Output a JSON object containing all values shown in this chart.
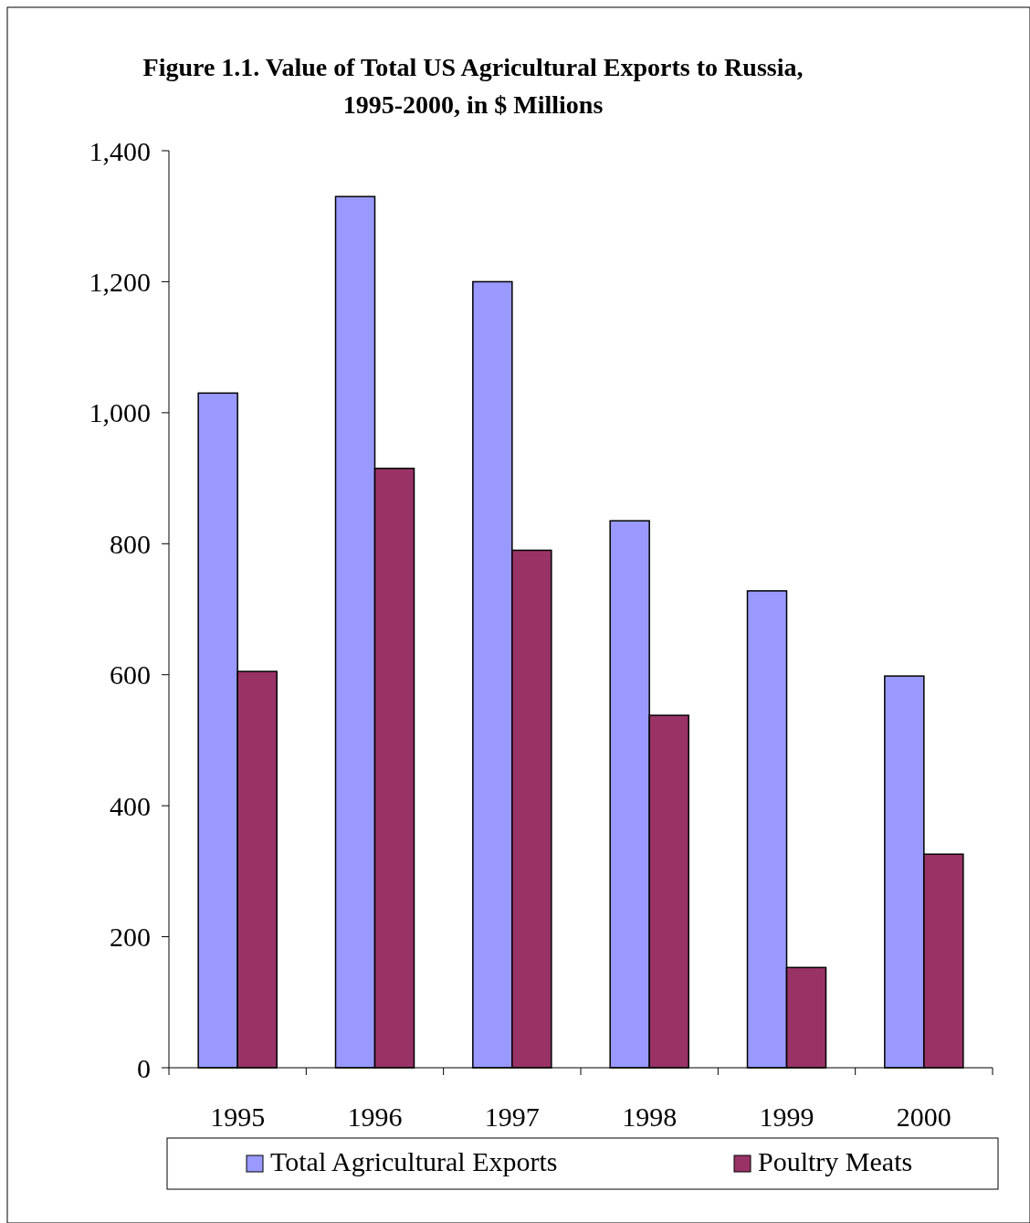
{
  "chart_data": {
    "type": "bar",
    "title": "Figure 1.1. Value of Total US Agricultural Exports to Russia, 1995-2000, in $ Millions",
    "categories": [
      "1995",
      "1996",
      "1997",
      "1998",
      "1999",
      "2000"
    ],
    "series": [
      {
        "name": "Total Agricultural Exports",
        "color": "#9999ff",
        "values": [
          1030,
          1330,
          1200,
          835,
          728,
          598
        ]
      },
      {
        "name": "Poultry Meats",
        "color": "#993366",
        "values": [
          605,
          915,
          790,
          538,
          153,
          326
        ]
      }
    ],
    "ylim": [
      0,
      1400
    ],
    "yticks": [
      {
        "value": 0,
        "label": "0"
      },
      {
        "value": 200,
        "label": "200"
      },
      {
        "value": 400,
        "label": "400"
      },
      {
        "value": 600,
        "label": "600"
      },
      {
        "value": 800,
        "label": "800"
      },
      {
        "value": 1000,
        "label": "1,000"
      },
      {
        "value": 1200,
        "label": "1,200"
      },
      {
        "value": 1400,
        "label": "1,400"
      }
    ],
    "grid": false,
    "legend": "bottom"
  }
}
